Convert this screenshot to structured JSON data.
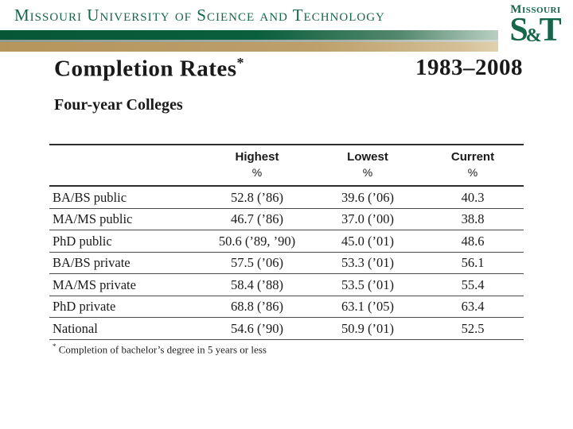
{
  "slide": {
    "university_wordmark": "Missouri University of Science and Technology",
    "logo": {
      "top": "Missouri",
      "s": "S",
      "amp": "&",
      "t": "T"
    },
    "title": "Completion Rates",
    "title_asterisk": "*",
    "date_range": "1983–2008",
    "subtitle": "Four-year Colleges",
    "colors": {
      "brand_green": "#15664a",
      "brand_tan": "#bd9f6a",
      "text": "#1a1a1a"
    },
    "table": {
      "columns": [
        {
          "label": "Highest",
          "unit": "%"
        },
        {
          "label": "Lowest",
          "unit": "%"
        },
        {
          "label": "Current",
          "unit": "%"
        }
      ],
      "rows": [
        {
          "label": "BA/BS public",
          "highest": "52.8 (’86)",
          "lowest": "39.6 (’06)",
          "current": "40.3"
        },
        {
          "label": "MA/MS public",
          "highest": "46.7 (’86)",
          "lowest": "37.0 (’00)",
          "current": "38.8"
        },
        {
          "label": "PhD public",
          "highest": "50.6 (’89, ’90)",
          "lowest": "45.0 (’01)",
          "current": "48.6"
        },
        {
          "label": "BA/BS private",
          "highest": "57.5 (’06)",
          "lowest": "53.3 (’01)",
          "current": "56.1"
        },
        {
          "label": "MA/MS private",
          "highest": "58.4 (’88)",
          "lowest": "53.5 (’01)",
          "current": "55.4"
        },
        {
          "label": "PhD private",
          "highest": "68.8 (’86)",
          "lowest": "63.1 (’05)",
          "current": "63.4"
        },
        {
          "label": "National",
          "highest": "54.6 (’90)",
          "lowest": "50.9 (’01)",
          "current": "52.5"
        }
      ]
    },
    "footnote_marker": "*",
    "footnote_text": "Completion of bachelor’s degree in 5 years or less"
  }
}
